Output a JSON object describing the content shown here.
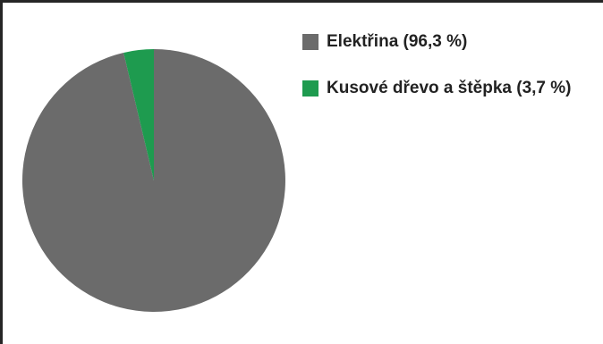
{
  "chart_data": {
    "type": "pie",
    "title": "",
    "legend_position": "top-right",
    "slices": [
      {
        "label": "Elektřina (96,3 %)",
        "value": 96.3,
        "color": "#6b6b6b"
      },
      {
        "label": "Kusové dřevo a štěpka (3,7 %)",
        "value": 3.7,
        "color": "#1e9b4f"
      }
    ]
  }
}
